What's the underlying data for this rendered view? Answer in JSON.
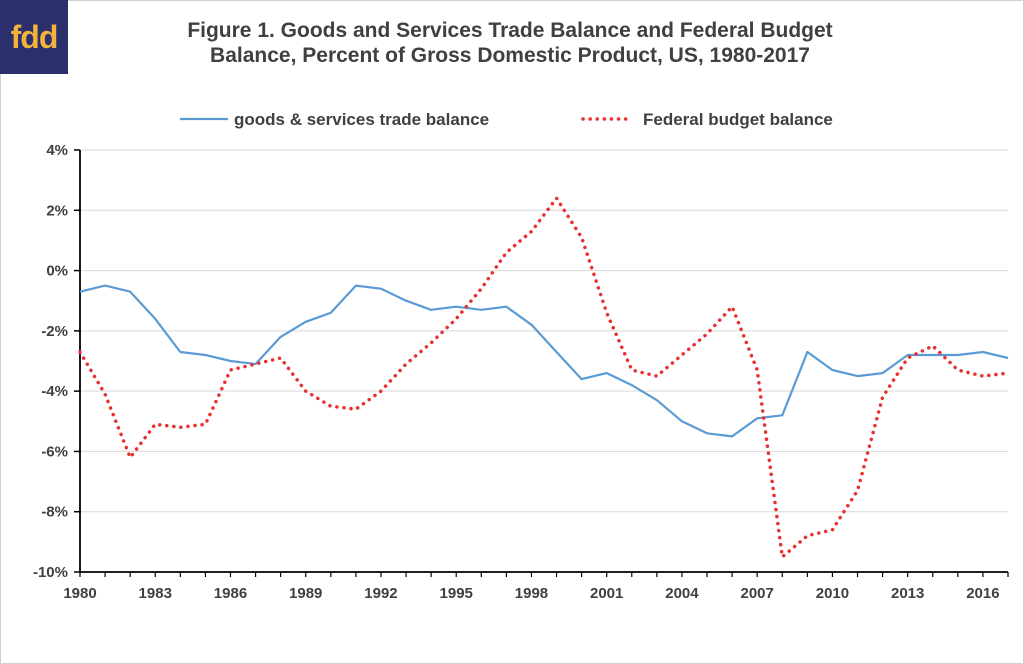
{
  "logo": {
    "text": "fdd",
    "bg": "#2b2f6b",
    "fg": "#f2b33d"
  },
  "chart_data": {
    "type": "line",
    "title_line1": "Figure 1.  Goods and Services Trade Balance and Federal Budget",
    "title_line2": "Balance, Percent of Gross Domestic Product, US, 1980-2017",
    "x": [
      1980,
      1981,
      1982,
      1983,
      1984,
      1985,
      1986,
      1987,
      1988,
      1989,
      1990,
      1991,
      1992,
      1993,
      1994,
      1995,
      1996,
      1997,
      1998,
      1999,
      2000,
      2001,
      2002,
      2003,
      2004,
      2005,
      2006,
      2007,
      2008,
      2009,
      2010,
      2011,
      2012,
      2013,
      2014,
      2015,
      2016,
      2017
    ],
    "xlim": [
      1980,
      2017
    ],
    "ylim": [
      -10,
      4
    ],
    "x_ticks": [
      "1980",
      "1983",
      "1986",
      "1989",
      "1992",
      "1995",
      "1998",
      "2001",
      "2004",
      "2007",
      "2010",
      "2013",
      "2016"
    ],
    "y_ticks": [
      "4%",
      "2%",
      "0%",
      "-2%",
      "-4%",
      "-6%",
      "-8%",
      "-10%"
    ],
    "legend_position": "top",
    "grid": true,
    "series": [
      {
        "name": "goods & services trade balance",
        "style": "solid",
        "color": "#5b9bd5",
        "values": [
          -0.7,
          -0.5,
          -0.7,
          -1.6,
          -2.7,
          -2.8,
          -3.0,
          -3.1,
          -2.2,
          -1.7,
          -1.4,
          -0.5,
          -0.6,
          -1.0,
          -1.3,
          -1.2,
          -1.3,
          -1.2,
          -1.8,
          -2.7,
          -3.6,
          -3.4,
          -3.8,
          -4.3,
          -5.0,
          -5.4,
          -5.5,
          -4.9,
          -4.8,
          -2.7,
          -3.3,
          -3.5,
          -3.4,
          -2.8,
          -2.8,
          -2.8,
          -2.7,
          -2.9
        ]
      },
      {
        "name": "Federal budget balance",
        "style": "dotted",
        "color": "#e8312f",
        "values": [
          -2.7,
          -4.1,
          -6.2,
          -5.1,
          -5.2,
          -5.1,
          -3.3,
          -3.1,
          -2.9,
          -4.0,
          -4.5,
          -4.6,
          -4.0,
          -3.1,
          -2.4,
          -1.6,
          -0.6,
          0.6,
          1.3,
          2.4,
          1.1,
          -1.4,
          -3.3,
          -3.5,
          -2.8,
          -2.1,
          -1.2,
          -3.3,
          -9.5,
          -8.8,
          -8.6,
          -7.3,
          -4.2,
          -2.9,
          -2.5,
          -3.3,
          -3.5,
          -3.4
        ]
      }
    ]
  }
}
